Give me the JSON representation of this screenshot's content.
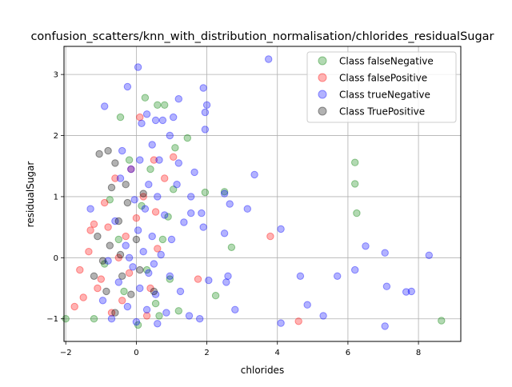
{
  "chart_data": {
    "type": "scatter",
    "title": "confusion_scatters/knn_with_distribution_normalisation/chlorides_residualSugar",
    "xlabel": "chlorides",
    "ylabel": "residualSugar",
    "xlim": [
      -2.05,
      9.2
    ],
    "ylim": [
      -1.37,
      3.46
    ],
    "xticks": [
      -2,
      0,
      2,
      4,
      6,
      8
    ],
    "yticks": [
      -1,
      0,
      1,
      2,
      3
    ],
    "grid": true,
    "legend_position": "top-right",
    "marker_alpha": 0.3,
    "series": [
      {
        "name": "Class falseNegative",
        "color": "#008000",
        "points": [
          [
            -2.0,
            -1.0
          ],
          [
            8.65,
            -1.03
          ],
          [
            6.2,
            1.56
          ],
          [
            6.2,
            1.21
          ],
          [
            6.25,
            0.73
          ],
          [
            2.7,
            0.17
          ],
          [
            2.5,
            1.08
          ],
          [
            1.95,
            1.07
          ],
          [
            2.25,
            -0.62
          ],
          [
            1.2,
            -0.87
          ],
          [
            1.1,
            1.8
          ],
          [
            0.8,
            2.5
          ],
          [
            0.6,
            2.5
          ],
          [
            0.25,
            2.62
          ],
          [
            -0.45,
            2.3
          ],
          [
            1.45,
            1.96
          ],
          [
            -1.2,
            -1.0
          ],
          [
            0.05,
            -1.1
          ],
          [
            0.55,
            -0.75
          ],
          [
            0.9,
            0.67
          ],
          [
            -0.5,
            0.3
          ],
          [
            -0.2,
            1.6
          ],
          [
            0.3,
            -0.2
          ],
          [
            0.75,
            0.3
          ],
          [
            -0.75,
            0.95
          ],
          [
            1.05,
            1.12
          ],
          [
            0.4,
            1.45
          ],
          [
            -0.35,
            -0.55
          ],
          [
            0.65,
            -0.95
          ],
          [
            -0.9,
            -0.1
          ],
          [
            0.15,
            0.85
          ],
          [
            0.95,
            -0.35
          ]
        ]
      },
      {
        "name": "Class falsePositive",
        "color": "#ff0000",
        "points": [
          [
            -1.75,
            -0.8
          ],
          [
            -1.5,
            -0.65
          ],
          [
            -1.3,
            0.45
          ],
          [
            -1.35,
            0.1
          ],
          [
            -1.6,
            -0.2
          ],
          [
            -1.2,
            0.55
          ],
          [
            3.8,
            0.35
          ],
          [
            4.6,
            -1.04
          ],
          [
            1.75,
            -0.35
          ],
          [
            -0.9,
            0.9
          ],
          [
            -0.8,
            0.5
          ],
          [
            -0.6,
            1.3
          ],
          [
            -0.5,
            0.0
          ],
          [
            -0.4,
            -0.7
          ],
          [
            -0.3,
            0.35
          ],
          [
            -0.2,
            -0.25
          ],
          [
            0.0,
            0.65
          ],
          [
            0.2,
            1.0
          ],
          [
            0.4,
            -0.5
          ],
          [
            0.6,
            0.15
          ],
          [
            0.8,
            1.3
          ],
          [
            1.05,
            1.65
          ],
          [
            0.5,
            1.6
          ],
          [
            0.1,
            2.3
          ],
          [
            -1.0,
            -0.35
          ],
          [
            -0.7,
            -0.9
          ],
          [
            -1.1,
            -0.5
          ],
          [
            0.3,
            -0.95
          ],
          [
            0.55,
            0.75
          ],
          [
            -0.15,
            1.45
          ]
        ]
      },
      {
        "name": "Class trueNegative",
        "color": "#0000ff",
        "points": [
          [
            3.75,
            3.25
          ],
          [
            8.3,
            0.04
          ],
          [
            7.8,
            -0.55
          ],
          [
            7.65,
            -0.56
          ],
          [
            7.05,
            0.08
          ],
          [
            7.05,
            -1.12
          ],
          [
            7.1,
            -0.47
          ],
          [
            6.2,
            -0.2
          ],
          [
            6.5,
            0.19
          ],
          [
            5.7,
            -0.3
          ],
          [
            5.3,
            -0.95
          ],
          [
            4.85,
            -0.77
          ],
          [
            4.65,
            -0.3
          ],
          [
            4.1,
            0.47
          ],
          [
            4.1,
            -1.07
          ],
          [
            3.35,
            1.36
          ],
          [
            3.15,
            0.8
          ],
          [
            2.8,
            -0.85
          ],
          [
            2.6,
            -0.3
          ],
          [
            2.55,
            -0.4
          ],
          [
            2.5,
            1.05
          ],
          [
            2.5,
            0.4
          ],
          [
            2.65,
            0.88
          ],
          [
            2.05,
            -0.37
          ],
          [
            2.0,
            2.5
          ],
          [
            1.95,
            2.38
          ],
          [
            1.95,
            2.1
          ],
          [
            1.9,
            2.78
          ],
          [
            1.9,
            0.5
          ],
          [
            1.85,
            0.73
          ],
          [
            1.65,
            1.4
          ],
          [
            1.55,
            1.0
          ],
          [
            1.55,
            0.73
          ],
          [
            1.35,
            0.58
          ],
          [
            1.2,
            2.6
          ],
          [
            1.2,
            1.55
          ],
          [
            1.05,
            2.3
          ],
          [
            0.95,
            2.0
          ],
          [
            0.05,
            3.12
          ],
          [
            -0.25,
            2.8
          ],
          [
            -0.9,
            2.48
          ],
          [
            -1.3,
            0.8
          ],
          [
            0.15,
            2.2
          ],
          [
            0.3,
            2.35
          ],
          [
            0.55,
            2.25
          ],
          [
            0.75,
            2.25
          ],
          [
            0.45,
            1.85
          ],
          [
            0.1,
            1.6
          ],
          [
            -0.15,
            1.45
          ],
          [
            -0.45,
            1.3
          ],
          [
            0.35,
            1.2
          ],
          [
            0.6,
            1.0
          ],
          [
            -0.05,
            0.95
          ],
          [
            0.25,
            0.8
          ],
          [
            0.8,
            0.7
          ],
          [
            -0.6,
            0.6
          ],
          [
            0.05,
            0.45
          ],
          [
            0.45,
            0.35
          ],
          [
            1.0,
            0.3
          ],
          [
            -0.3,
            0.2
          ],
          [
            0.2,
            0.1
          ],
          [
            0.7,
            0.05
          ],
          [
            -0.8,
            -0.05
          ],
          [
            -0.1,
            -0.15
          ],
          [
            0.35,
            -0.25
          ],
          [
            0.95,
            -0.3
          ],
          [
            -0.5,
            -0.4
          ],
          [
            0.1,
            -0.5
          ],
          [
            0.55,
            -0.6
          ],
          [
            1.25,
            -0.55
          ],
          [
            -0.95,
            -0.7
          ],
          [
            -0.25,
            -0.8
          ],
          [
            0.3,
            -0.85
          ],
          [
            0.85,
            -0.9
          ],
          [
            1.5,
            -0.95
          ],
          [
            -0.7,
            -1.0
          ],
          [
            0.0,
            -1.05
          ],
          [
            0.6,
            -1.08
          ],
          [
            1.8,
            -1.0
          ],
          [
            -0.4,
            1.75
          ],
          [
            0.65,
            1.6
          ],
          [
            1.15,
            1.2
          ],
          [
            -0.2,
            0.0
          ],
          [
            0.5,
            -0.1
          ]
        ]
      },
      {
        "name": "Class TruePositive",
        "color": "#000000",
        "points": [
          [
            -1.05,
            1.7
          ],
          [
            -0.8,
            1.75
          ],
          [
            -0.6,
            1.55
          ],
          [
            -0.3,
            1.2
          ],
          [
            -0.5,
            0.6
          ],
          [
            -0.75,
            0.2
          ],
          [
            -0.95,
            -0.05
          ],
          [
            -0.4,
            -0.3
          ],
          [
            -0.15,
            -0.6
          ],
          [
            -0.6,
            -0.9
          ],
          [
            -1.2,
            -0.3
          ],
          [
            0.0,
            0.3
          ],
          [
            -0.25,
            0.9
          ],
          [
            0.1,
            -0.2
          ],
          [
            -0.85,
            -0.55
          ],
          [
            -0.45,
            0.05
          ],
          [
            0.2,
            1.05
          ],
          [
            -1.1,
            0.35
          ],
          [
            0.5,
            -0.55
          ],
          [
            -0.7,
            1.15
          ]
        ]
      }
    ]
  }
}
